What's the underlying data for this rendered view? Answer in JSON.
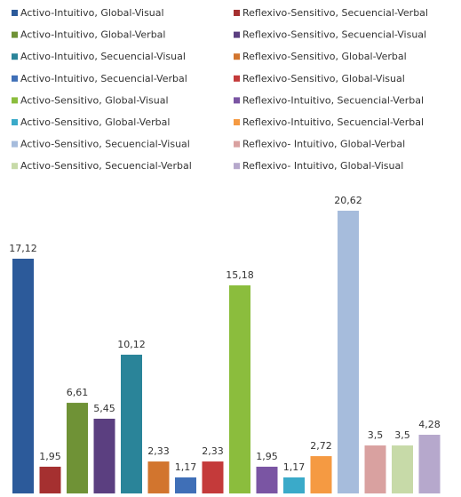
{
  "chart_data": {
    "type": "bar",
    "series": [
      {
        "name": "Activo-Intuitivo, Global-Visual",
        "color": "#2c5a9a",
        "values": [
          17.12
        ],
        "value_labels": [
          "17,12"
        ]
      },
      {
        "name": "Reflexivo-Sensitivo, Secuencial-Verbal",
        "color": "#a53030",
        "values": [
          1.95
        ],
        "value_labels": [
          "1,95"
        ]
      },
      {
        "name": "Activo-Intuitivo, Global-Verbal",
        "color": "#6f9236",
        "values": [
          6.61
        ],
        "value_labels": [
          "6,61"
        ]
      },
      {
        "name": "Reflexivo-Sensitivo, Secuencial-Visual",
        "color": "#5b3f80",
        "values": [
          5.45
        ],
        "value_labels": [
          "5,45"
        ]
      },
      {
        "name": "Activo-Intuitivo, Secuencial-Visual",
        "color": "#2a8499",
        "values": [
          10.12
        ],
        "value_labels": [
          "10,12"
        ]
      },
      {
        "name": "Reflexivo-Sensitivo, Global-Verbal",
        "color": "#d2752e",
        "values": [
          2.33
        ],
        "value_labels": [
          "2,33"
        ]
      },
      {
        "name": "Activo-Intuitivo, Secuencial-Verbal",
        "color": "#3f6fb7",
        "values": [
          1.17
        ],
        "value_labels": [
          "1,17"
        ]
      },
      {
        "name": "Reflexivo-Sensitivo, Global-Visual",
        "color": "#c43a3a",
        "values": [
          2.33
        ],
        "value_labels": [
          "2,33"
        ]
      },
      {
        "name": "Activo-Sensitivo, Global-Visual",
        "color": "#8bbd3d",
        "values": [
          15.18
        ],
        "value_labels": [
          "15,18"
        ]
      },
      {
        "name": "Reflexivo-Intuitivo, Secuencial-Verbal",
        "color": "#7a55a3",
        "values": [
          1.95
        ],
        "value_labels": [
          "1,95"
        ]
      },
      {
        "name": "Activo-Sensitivo, Global-Verbal",
        "color": "#3aaac9",
        "values": [
          1.17
        ],
        "value_labels": [
          "1,17"
        ]
      },
      {
        "name": "Reflexivo-Intuitivo, Secuencial-Verbal",
        "color": "#f59a42",
        "values": [
          2.72
        ],
        "value_labels": [
          "2,72"
        ]
      },
      {
        "name": "Activo-Sensitivo, Secuencial-Visual",
        "color": "#a6bcdc",
        "values": [
          20.62
        ],
        "value_labels": [
          "20,62"
        ]
      },
      {
        "name": "Reflexivo- Intuitivo, Global-Verbal",
        "color": "#d9a1a0",
        "values": [
          3.5
        ],
        "value_labels": [
          "3,5"
        ]
      },
      {
        "name": "Activo-Sensitivo, Secuencial-Verbal",
        "color": "#c7daa8",
        "values": [
          3.5
        ],
        "value_labels": [
          "3,5"
        ]
      },
      {
        "name": "Reflexivo- Intuitivo, Global-Visual",
        "color": "#b6a8cc",
        "values": [
          4.28
        ],
        "value_labels": [
          "4,28"
        ]
      }
    ]
  }
}
